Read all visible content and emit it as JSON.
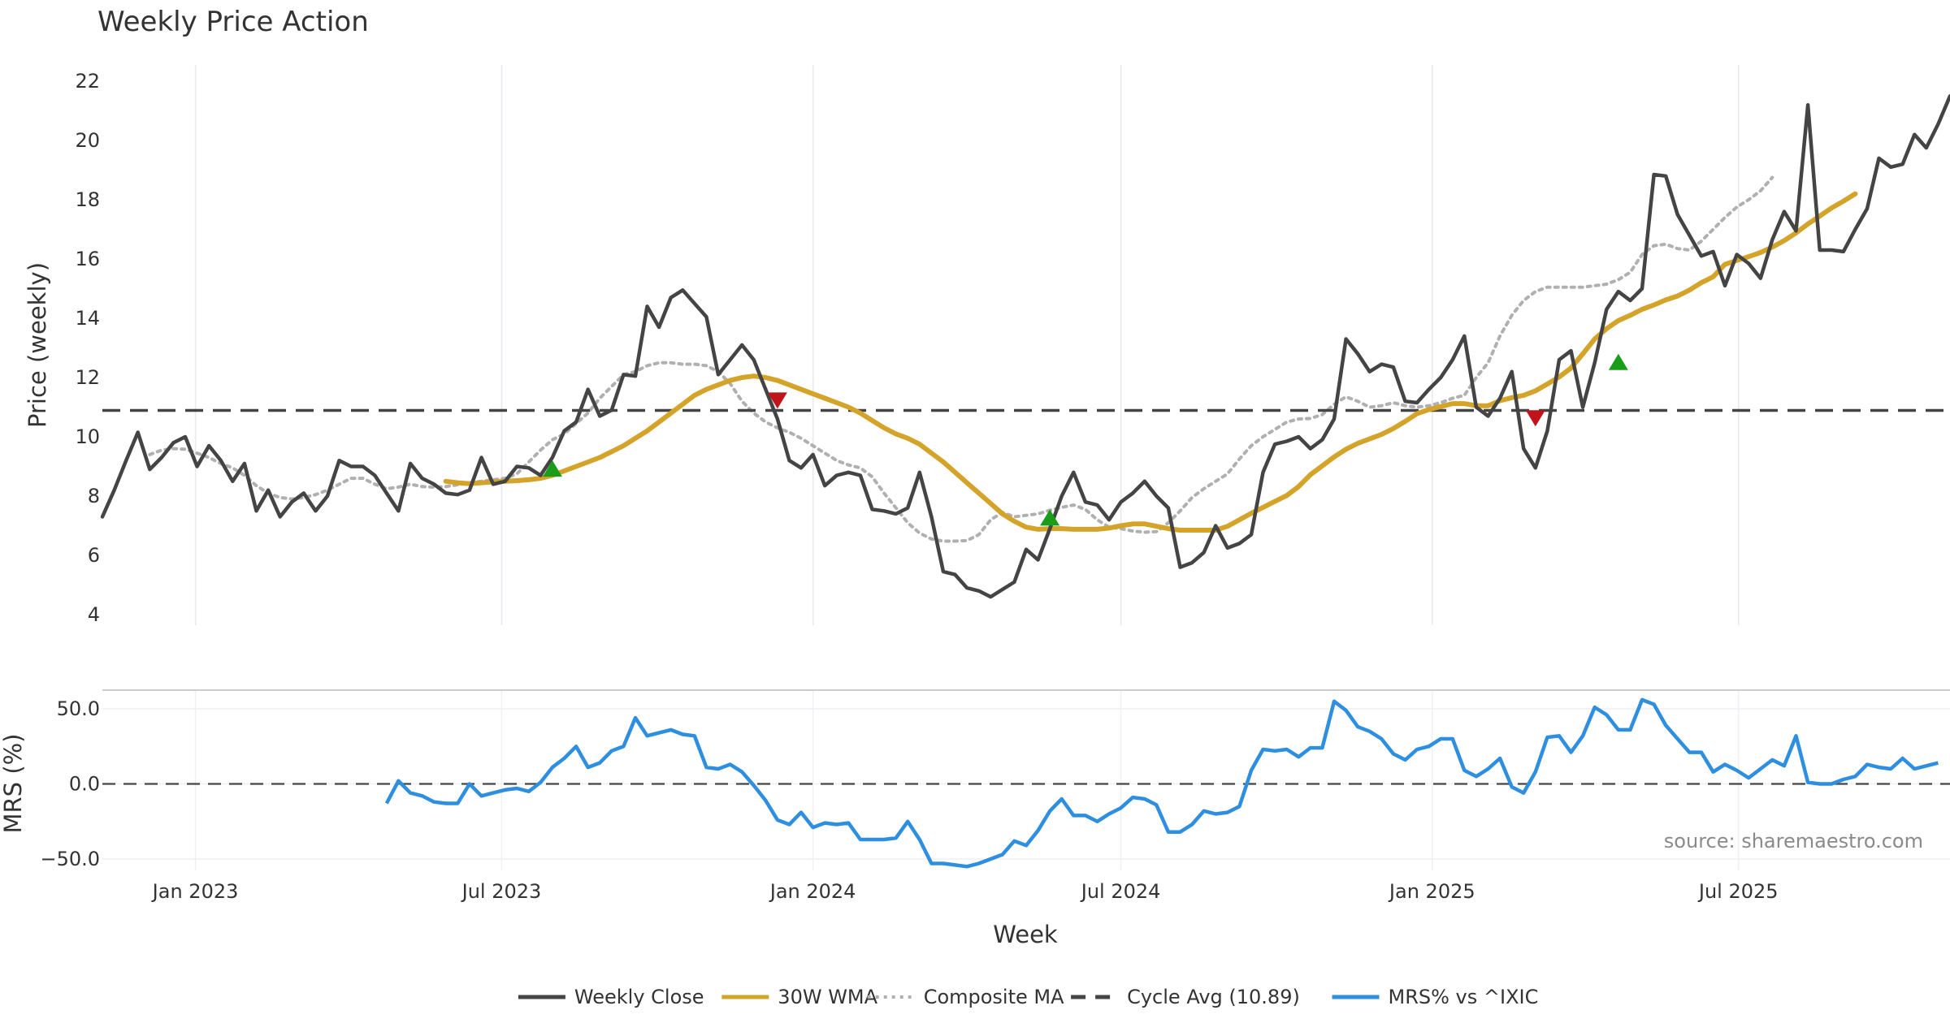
{
  "chart_data": [
    {
      "type": "line",
      "title": "Weekly Price Action",
      "ylabel": "Price (weekly)",
      "xlabel": "Week",
      "x_start": "2022-11-07",
      "x_step_days": 7,
      "ylim": [
        4,
        22.6
      ],
      "yticks": [
        4,
        6,
        8,
        10,
        12,
        14,
        16,
        18,
        20,
        22
      ],
      "xticks": [
        {
          "date": "2023-01-01",
          "label": "Jan 2023"
        },
        {
          "date": "2023-07-01",
          "label": "Jul 2023"
        },
        {
          "date": "2024-01-01",
          "label": "Jan 2024"
        },
        {
          "date": "2024-07-01",
          "label": "Jul 2024"
        },
        {
          "date": "2025-01-01",
          "label": "Jan 2025"
        },
        {
          "date": "2025-07-01",
          "label": "Jul 2025"
        }
      ],
      "grid": "vertical",
      "series": [
        {
          "name": "Weekly Close",
          "color": "#444444",
          "style": "solid",
          "values": [
            7.3,
            8.2,
            9.2,
            10.15,
            8.9,
            9.3,
            9.8,
            10.0,
            9.0,
            9.7,
            9.2,
            8.5,
            9.1,
            7.5,
            8.2,
            7.3,
            7.8,
            8.1,
            7.5,
            8.0,
            9.2,
            9.0,
            9.0,
            8.7,
            8.1,
            7.5,
            9.1,
            8.6,
            8.4,
            8.1,
            8.05,
            8.2,
            9.3,
            8.4,
            8.5,
            9.0,
            8.95,
            8.7,
            9.3,
            10.2,
            10.5,
            11.6,
            10.7,
            10.9,
            12.1,
            12.05,
            14.4,
            13.7,
            14.7,
            14.95,
            14.5,
            14.05,
            12.1,
            12.6,
            13.1,
            12.6,
            11.6,
            10.6,
            9.2,
            8.95,
            9.4,
            8.35,
            8.7,
            8.8,
            8.7,
            7.55,
            7.5,
            7.4,
            7.6,
            8.8,
            7.3,
            5.45,
            5.35,
            4.9,
            4.8,
            4.6,
            4.85,
            5.1,
            6.2,
            5.85,
            6.9,
            8.0,
            8.8,
            7.8,
            7.7,
            7.2,
            7.8,
            8.1,
            8.5,
            8.0,
            7.6,
            5.6,
            5.75,
            6.1,
            7.0,
            6.25,
            6.4,
            6.7,
            8.8,
            9.75,
            9.85,
            10.0,
            9.6,
            9.9,
            10.6,
            13.3,
            12.8,
            12.2,
            12.45,
            12.35,
            11.2,
            11.15,
            11.6,
            12.0,
            12.6,
            13.4,
            11.0,
            10.7,
            11.3,
            12.2,
            9.6,
            8.95,
            10.2,
            12.6,
            12.9,
            11.0,
            12.5,
            14.3,
            14.9,
            14.6,
            15.0,
            18.85,
            18.8,
            17.5,
            16.8,
            16.1,
            16.25,
            15.1,
            16.15,
            15.85,
            15.35,
            16.65,
            17.6,
            16.95,
            21.2,
            16.3,
            16.3,
            16.25,
            17.0,
            17.7,
            19.4,
            19.1,
            19.2,
            20.2,
            19.75,
            20.55,
            21.5
          ]
        },
        {
          "name": "30W WMA",
          "color": "#d4a42a",
          "style": "solid",
          "offset": 29,
          "values": [
            8.5,
            8.45,
            8.42,
            8.45,
            8.48,
            8.5,
            8.52,
            8.55,
            8.6,
            8.7,
            8.85,
            9.0,
            9.15,
            9.3,
            9.5,
            9.7,
            9.95,
            10.2,
            10.5,
            10.8,
            11.1,
            11.4,
            11.6,
            11.75,
            11.9,
            12.0,
            12.05,
            12.0,
            11.9,
            11.75,
            11.6,
            11.45,
            11.3,
            11.15,
            11.0,
            10.8,
            10.55,
            10.3,
            10.1,
            9.95,
            9.75,
            9.45,
            9.15,
            8.8,
            8.45,
            8.1,
            7.75,
            7.4,
            7.15,
            6.95,
            6.88,
            6.9,
            6.9,
            6.88,
            6.88,
            6.88,
            6.92,
            7.0,
            7.06,
            7.06,
            6.98,
            6.9,
            6.85,
            6.85,
            6.85,
            6.85,
            6.98,
            7.2,
            7.42,
            7.62,
            7.82,
            8.02,
            8.32,
            8.72,
            9.02,
            9.32,
            9.58,
            9.78,
            9.93,
            10.08,
            10.28,
            10.52,
            10.78,
            10.92,
            11.02,
            11.12,
            11.12,
            11.05,
            11.05,
            11.22,
            11.32,
            11.4,
            11.55,
            11.78,
            12.02,
            12.32,
            12.8,
            13.3,
            13.65,
            13.92,
            14.1,
            14.3,
            14.45,
            14.62,
            14.75,
            14.95,
            15.2,
            15.4,
            15.82,
            15.95,
            16.08,
            16.22,
            16.4,
            16.62,
            16.88,
            17.18,
            17.45,
            17.72,
            17.95,
            18.2
          ]
        },
        {
          "name": "Composite MA",
          "color": "#b0b0b0",
          "style": "dotted",
          "offset": 4,
          "values": [
            9.4,
            9.55,
            9.6,
            9.58,
            9.45,
            9.3,
            9.1,
            8.95,
            8.7,
            8.35,
            8.1,
            7.95,
            7.9,
            7.95,
            8.05,
            8.2,
            8.4,
            8.6,
            8.6,
            8.4,
            8.25,
            8.3,
            8.4,
            8.32,
            8.3,
            8.32,
            8.38,
            8.45,
            8.5,
            8.55,
            8.6,
            8.75,
            9.15,
            9.55,
            9.9,
            10.1,
            10.45,
            10.8,
            11.3,
            11.7,
            12.1,
            12.2,
            12.4,
            12.5,
            12.5,
            12.45,
            12.45,
            12.4,
            12.2,
            11.8,
            11.2,
            10.8,
            10.5,
            10.3,
            10.15,
            9.95,
            9.7,
            9.45,
            9.2,
            9.05,
            8.95,
            8.65,
            8.1,
            7.6,
            7.1,
            6.75,
            6.55,
            6.48,
            6.48,
            6.5,
            6.7,
            7.2,
            7.45,
            7.3,
            7.35,
            7.4,
            7.52,
            7.62,
            7.7,
            7.55,
            7.2,
            6.95,
            6.9,
            6.82,
            6.78,
            6.8,
            7.1,
            7.5,
            7.95,
            8.25,
            8.5,
            8.75,
            9.25,
            9.7,
            10.0,
            10.25,
            10.5,
            10.6,
            10.62,
            10.75,
            11.1,
            11.35,
            11.2,
            11.0,
            11.05,
            11.15,
            11.05,
            11.0,
            11.05,
            11.15,
            11.3,
            11.4,
            12.0,
            12.5,
            13.4,
            14.1,
            14.6,
            14.9,
            15.05,
            15.05,
            15.05,
            15.05,
            15.1,
            15.15,
            15.3,
            15.55,
            16.15,
            16.45,
            16.5,
            16.35,
            16.3,
            16.6,
            17.0,
            17.4,
            17.75,
            18.0,
            18.3,
            18.75
          ]
        },
        {
          "name": "Cycle Avg (10.89)",
          "color": "#444444",
          "style": "dashed",
          "constant": 10.89
        }
      ],
      "markers": [
        {
          "type": "buy",
          "index": 38,
          "value": 8.9,
          "color": "#1a9e1a"
        },
        {
          "type": "sell",
          "index": 57,
          "value": 11.25,
          "color": "#c0141c"
        },
        {
          "type": "buy",
          "index": 80,
          "value": 7.25,
          "color": "#1a9e1a"
        },
        {
          "type": "sell",
          "index": 121,
          "value": 10.65,
          "color": "#c0141c"
        },
        {
          "type": "buy",
          "index": 128,
          "value": 12.5,
          "color": "#1a9e1a"
        }
      ]
    },
    {
      "type": "line",
      "ylabel": "MRS (%)",
      "x_start": "2022-11-07",
      "x_step_days": 7,
      "ylim": [
        -57,
        62
      ],
      "yticks": [
        {
          "value": 50,
          "label": "50.0"
        },
        {
          "value": 0,
          "label": "0.0"
        },
        {
          "value": -50,
          "label": "−50.0"
        }
      ],
      "zero_line": "dashed",
      "series": [
        {
          "name": "MRS% vs ^IXIC",
          "color": "#2e8fe0",
          "offset": 24,
          "values": [
            -13,
            2,
            -6,
            -8,
            -12,
            -13,
            -13,
            0,
            -8,
            -6,
            -4,
            -3,
            -5,
            1,
            11,
            17,
            25,
            11,
            14,
            22,
            25,
            44,
            32,
            34,
            36,
            33,
            32,
            11,
            10,
            13,
            8,
            -1,
            -11,
            -24,
            -27,
            -19,
            -29,
            -26,
            -27,
            -26,
            -37,
            -37,
            -37,
            -36,
            -25,
            -37,
            -53,
            -53,
            -54,
            -55,
            -53,
            -50,
            -47,
            -38,
            -41,
            -31,
            -18,
            -10,
            -21,
            -21,
            -25,
            -20,
            -16,
            -9,
            -10,
            -14,
            -32,
            -32,
            -27,
            -18,
            -20,
            -19,
            -15,
            9,
            23,
            22,
            23,
            18,
            24,
            24,
            55,
            49,
            38,
            35,
            30,
            20,
            16,
            23,
            25,
            30,
            30,
            9,
            5,
            10,
            17,
            -2,
            -6,
            8,
            31,
            32,
            21,
            32,
            51,
            46,
            36,
            36,
            56,
            53,
            39,
            30,
            21,
            21,
            8,
            13,
            9,
            4,
            10,
            16,
            12,
            32,
            1,
            0,
            0,
            3,
            5,
            13,
            11,
            10,
            17,
            10,
            12,
            14
          ]
        }
      ]
    }
  ],
  "legend": {
    "items": [
      {
        "label": "Weekly Close",
        "color": "#444444",
        "style": "solid"
      },
      {
        "label": "30W WMA",
        "color": "#d4a42a",
        "style": "solid"
      },
      {
        "label": "Composite MA",
        "color": "#b0b0b0",
        "style": "dotted"
      },
      {
        "label": "Cycle Avg (10.89)",
        "color": "#444444",
        "style": "dashed"
      },
      {
        "label": "MRS% vs ^IXIC",
        "color": "#2e8fe0",
        "style": "solid"
      }
    ]
  },
  "source": "source: sharemaestro.com"
}
